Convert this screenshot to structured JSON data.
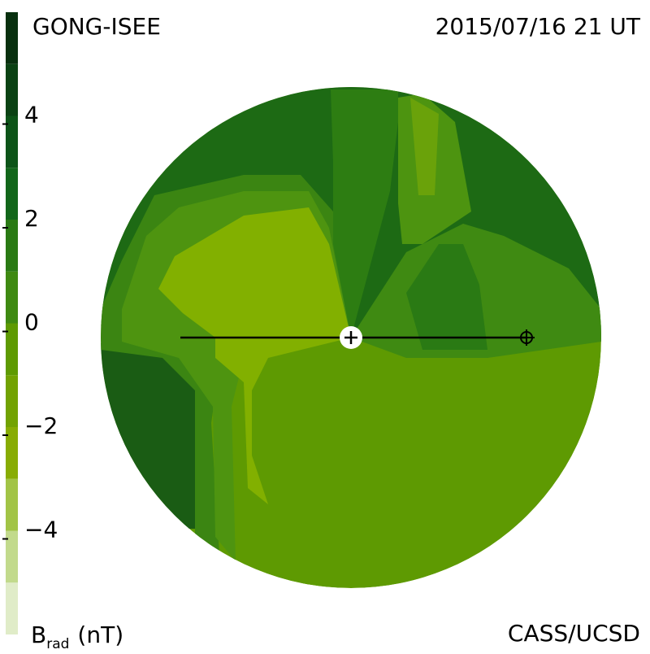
{
  "chart_data": {
    "type": "contour",
    "title": "GONG-ISEE",
    "subtitle": "2015/07/16 21 UT",
    "credit": "CASS/UCSD",
    "colorbar_label": "B",
    "colorbar_label_subscript": "rad",
    "colorbar_unit": "(nT)",
    "clim": [
      -6,
      6
    ],
    "levels": [
      -6,
      -5,
      -4,
      -3,
      -2,
      -1,
      0,
      1,
      2,
      3,
      4,
      5,
      6
    ],
    "colors": [
      "#e0ecc8",
      "#c2da8c",
      "#a2c446",
      "#88ac04",
      "#72a202",
      "#5e9a02",
      "#3f8a12",
      "#2a7a14",
      "#12661a",
      "#0d5418",
      "#0b4214",
      "#08300f"
    ],
    "cticks": [
      {
        "value": -4,
        "label": "−4"
      },
      {
        "value": -2,
        "label": "−2"
      },
      0,
      2,
      4
    ]
  }
}
